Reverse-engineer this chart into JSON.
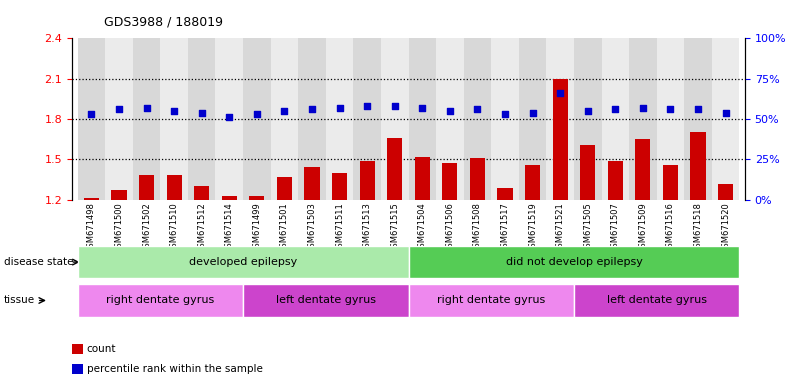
{
  "title": "GDS3988 / 188019",
  "samples": [
    "GSM671498",
    "GSM671500",
    "GSM671502",
    "GSM671510",
    "GSM671512",
    "GSM671514",
    "GSM671499",
    "GSM671501",
    "GSM671503",
    "GSM671511",
    "GSM671513",
    "GSM671515",
    "GSM671504",
    "GSM671506",
    "GSM671508",
    "GSM671517",
    "GSM671519",
    "GSM671521",
    "GSM671505",
    "GSM671507",
    "GSM671509",
    "GSM671516",
    "GSM671518",
    "GSM671520"
  ],
  "bar_values": [
    1.21,
    1.27,
    1.38,
    1.38,
    1.3,
    1.23,
    1.23,
    1.37,
    1.44,
    1.4,
    1.49,
    1.66,
    1.52,
    1.47,
    1.51,
    1.29,
    1.46,
    2.1,
    1.61,
    1.49,
    1.65,
    1.46,
    1.7,
    1.32
  ],
  "percentile_values": [
    53,
    56,
    57,
    55,
    54,
    51,
    53,
    55,
    56,
    57,
    58,
    58,
    57,
    55,
    56,
    53,
    54,
    66,
    55,
    56,
    57,
    56,
    56,
    54
  ],
  "ylim_left": [
    1.2,
    2.4
  ],
  "ylim_right": [
    0,
    100
  ],
  "yticks_left": [
    1.2,
    1.5,
    1.8,
    2.1,
    2.4
  ],
  "yticks_right": [
    0,
    25,
    50,
    75,
    100
  ],
  "bar_color": "#cc0000",
  "dot_color": "#0000cc",
  "hline_values": [
    1.5,
    1.8,
    2.1
  ],
  "disease_state_groups": [
    {
      "label": "developed epilepsy",
      "start": 0,
      "end": 11,
      "color": "#aaeaaa"
    },
    {
      "label": "did not develop epilepsy",
      "start": 12,
      "end": 23,
      "color": "#55cc55"
    }
  ],
  "tissue_groups": [
    {
      "label": "right dentate gyrus",
      "start": 0,
      "end": 5,
      "color": "#ee88ee"
    },
    {
      "label": "left dentate gyrus",
      "start": 6,
      "end": 11,
      "color": "#cc44cc"
    },
    {
      "label": "right dentate gyrus",
      "start": 12,
      "end": 17,
      "color": "#ee88ee"
    },
    {
      "label": "left dentate gyrus",
      "start": 18,
      "end": 23,
      "color": "#cc44cc"
    }
  ],
  "legend_items": [
    {
      "label": "count",
      "color": "#cc0000"
    },
    {
      "label": "percentile rank within the sample",
      "color": "#0000cc"
    }
  ]
}
